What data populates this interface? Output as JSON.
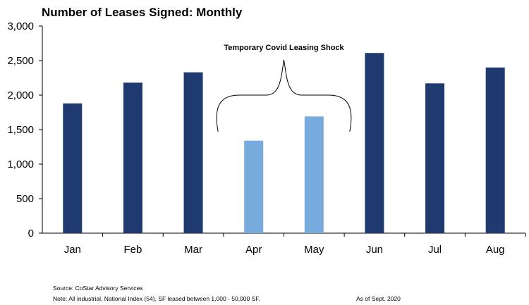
{
  "chart_data": {
    "type": "bar",
    "title": "Number of Leases Signed: Monthly",
    "categories": [
      "Jan",
      "Feb",
      "Mar",
      "Apr",
      "May",
      "Jun",
      "Jul",
      "Aug"
    ],
    "values": [
      1880,
      2180,
      2330,
      1340,
      1690,
      2610,
      2170,
      2400
    ],
    "highlight": [
      false,
      false,
      false,
      true,
      true,
      false,
      false,
      false
    ],
    "ylim": [
      0,
      3000
    ],
    "yticks": [
      0,
      500,
      1000,
      1500,
      2000,
      2500,
      3000
    ],
    "ytick_labels": [
      "0",
      "500",
      "1,000",
      "1,500",
      "2,000",
      "2,500",
      "3,000"
    ],
    "grid": false,
    "colors": {
      "default": "#1f3a6e",
      "highlight": "#77aadd"
    },
    "annotation": {
      "text": "Temporary Covid Leasing Shock",
      "spans": [
        "Apr",
        "May"
      ]
    }
  },
  "footnotes": {
    "source": "Source: CoStar Advisory Services",
    "note": "Note: All industrial, National Index (54), SF leased between 1,000 - 50,000 SF.",
    "as_of": "As of Sept. 2020"
  }
}
